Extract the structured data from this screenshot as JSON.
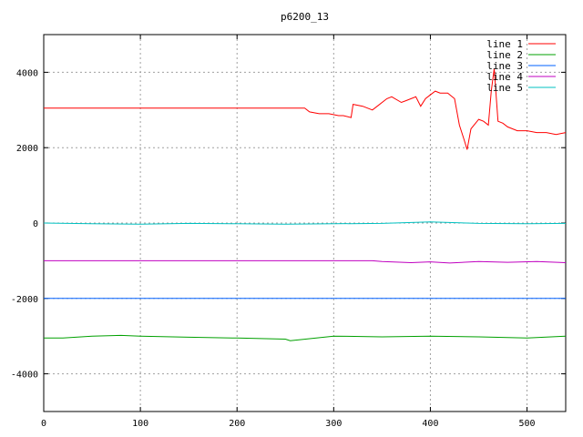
{
  "chart_data": {
    "type": "line",
    "title": "p6200_13",
    "xlabel": "",
    "ylabel": "",
    "xlim": [
      0,
      540
    ],
    "ylim": [
      -5000,
      5000
    ],
    "xticks": [
      0,
      100,
      200,
      300,
      400,
      500
    ],
    "yticks": [
      -4000,
      -2000,
      0,
      2000,
      4000
    ],
    "grid": true,
    "legend_position": "top-right",
    "series": [
      {
        "name": "line 1",
        "color": "#ff0000",
        "x": [
          0,
          270,
          275,
          285,
          295,
          305,
          310,
          318,
          320,
          330,
          340,
          345,
          355,
          360,
          370,
          375,
          385,
          390,
          395,
          400,
          405,
          410,
          418,
          425,
          430,
          435,
          438,
          442,
          450,
          455,
          460,
          463,
          466,
          470,
          475,
          480,
          490,
          500,
          510,
          520,
          530,
          540
        ],
        "y": [
          3050,
          3050,
          2950,
          2900,
          2900,
          2850,
          2850,
          2800,
          3150,
          3100,
          3000,
          3100,
          3300,
          3350,
          3200,
          3250,
          3350,
          3100,
          3300,
          3400,
          3500,
          3450,
          3450,
          3300,
          2600,
          2200,
          1950,
          2500,
          2750,
          2700,
          2600,
          3500,
          4100,
          2700,
          2650,
          2550,
          2450,
          2450,
          2400,
          2400,
          2350,
          2400
        ]
      },
      {
        "name": "line 2",
        "color": "#00a000",
        "x": [
          0,
          20,
          50,
          80,
          100,
          150,
          200,
          250,
          255,
          300,
          350,
          400,
          450,
          500,
          540
        ],
        "y": [
          -3050,
          -3050,
          -3000,
          -2980,
          -3000,
          -3030,
          -3050,
          -3080,
          -3120,
          -3000,
          -3020,
          -3000,
          -3020,
          -3050,
          -3000
        ]
      },
      {
        "name": "line 3",
        "color": "#0060ff",
        "x": [
          0,
          540
        ],
        "y": [
          -2000,
          -2000
        ]
      },
      {
        "name": "line 4",
        "color": "#c000c0",
        "x": [
          0,
          340,
          350,
          380,
          400,
          420,
          450,
          480,
          510,
          540
        ],
        "y": [
          -1000,
          -1000,
          -1020,
          -1050,
          -1030,
          -1060,
          -1020,
          -1040,
          -1020,
          -1050
        ]
      },
      {
        "name": "line 5",
        "color": "#00c0c0",
        "x": [
          0,
          50,
          100,
          150,
          200,
          250,
          300,
          350,
          400,
          450,
          500,
          540
        ],
        "y": [
          0,
          -20,
          -30,
          -10,
          -20,
          -30,
          -20,
          -10,
          30,
          -10,
          -20,
          -10
        ]
      }
    ]
  }
}
